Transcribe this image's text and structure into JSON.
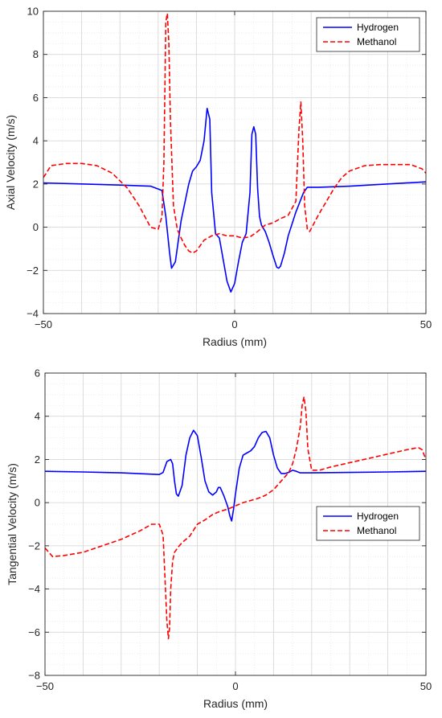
{
  "chart_data": [
    {
      "type": "line",
      "xlabel": "Radius (mm)",
      "ylabel": "Axial Velocity (m/s)",
      "xlim": [
        -50,
        50
      ],
      "ylim": [
        -4,
        10
      ],
      "xticks": [
        -50,
        0,
        50
      ],
      "yticks": [
        -4,
        -2,
        0,
        2,
        4,
        6,
        8,
        10
      ],
      "xtick_labels": [
        "−50",
        "0",
        "50"
      ],
      "ytick_labels": [
        "−4",
        "−2",
        "0",
        "2",
        "4",
        "6",
        "8",
        "10"
      ],
      "grid": true,
      "minor_grid": true,
      "legend": "top-right",
      "series": [
        {
          "name": "Hydrogen",
          "color": "#0000ff",
          "style": "solid",
          "x": [
            -50,
            -40,
            -30,
            -22,
            -19,
            -18,
            -17,
            -16.5,
            -15.5,
            -14,
            -12,
            -11,
            -10,
            -9,
            -8,
            -7.2,
            -6.5,
            -6,
            -5,
            -4,
            -3,
            -2,
            -1,
            0,
            1,
            2,
            3,
            4,
            4.5,
            5,
            5.5,
            6,
            6.5,
            7,
            8,
            9,
            10,
            11,
            11.5,
            12,
            13,
            14,
            16,
            18,
            19,
            20,
            22,
            30,
            40,
            50
          ],
          "y": [
            2.05,
            2.0,
            1.95,
            1.9,
            1.7,
            0.5,
            -1.2,
            -1.9,
            -1.6,
            0.3,
            2.0,
            2.6,
            2.8,
            3.1,
            4.0,
            5.5,
            5.0,
            1.6,
            -0.3,
            -0.5,
            -1.5,
            -2.5,
            -3.0,
            -2.6,
            -1.6,
            -0.7,
            -0.3,
            1.6,
            4.3,
            4.65,
            4.3,
            1.8,
            0.5,
            0.1,
            -0.2,
            -0.7,
            -1.3,
            -1.85,
            -1.9,
            -1.8,
            -1.2,
            -0.4,
            0.7,
            1.6,
            1.85,
            1.85,
            1.85,
            1.9,
            2.0,
            2.1
          ]
        },
        {
          "name": "Methanol",
          "color": "#ff0000",
          "style": "dashed",
          "x": [
            -50,
            -48,
            -44,
            -40,
            -36,
            -32,
            -28,
            -25,
            -22,
            -20,
            -19,
            -18.5,
            -18,
            -17.6,
            -17.2,
            -16.8,
            -16,
            -15,
            -14,
            -13,
            -12,
            -11,
            -10,
            -9,
            -8,
            -6,
            -4,
            -2,
            0,
            2,
            4,
            6,
            8,
            10,
            12,
            14,
            16,
            16.8,
            17.3,
            17.8,
            18.3,
            19,
            19.6,
            20.5,
            22,
            24,
            26,
            28,
            30,
            34,
            38,
            42,
            46,
            49,
            50
          ],
          "y": [
            2.3,
            2.85,
            2.95,
            2.95,
            2.85,
            2.5,
            1.8,
            1.0,
            0.0,
            -0.1,
            0.5,
            3.0,
            9.5,
            9.9,
            8.5,
            5.0,
            1.0,
            -0.1,
            -0.5,
            -0.85,
            -1.1,
            -1.2,
            -1.1,
            -0.85,
            -0.6,
            -0.4,
            -0.3,
            -0.4,
            -0.4,
            -0.5,
            -0.45,
            -0.2,
            0.1,
            0.2,
            0.4,
            0.55,
            1.2,
            4.5,
            5.8,
            4.0,
            1.0,
            -0.1,
            -0.2,
            0.1,
            0.6,
            1.2,
            1.8,
            2.3,
            2.6,
            2.85,
            2.9,
            2.9,
            2.9,
            2.7,
            2.5
          ]
        }
      ]
    },
    {
      "type": "line",
      "xlabel": "Radius (mm)",
      "ylabel": "Tangential Velocity (m/s)",
      "xlim": [
        -50,
        50
      ],
      "ylim": [
        -8,
        6
      ],
      "xticks": [
        -50,
        0,
        50
      ],
      "yticks": [
        -8,
        -6,
        -4,
        -2,
        0,
        2,
        4,
        6
      ],
      "xtick_labels": [
        "−50",
        "0",
        "50"
      ],
      "ytick_labels": [
        "−8",
        "−6",
        "−4",
        "−2",
        "0",
        "2",
        "4",
        "6"
      ],
      "grid": true,
      "minor_grid": true,
      "legend": "center-right",
      "series": [
        {
          "name": "Hydrogen",
          "color": "#0000ff",
          "style": "solid",
          "x": [
            -50,
            -40,
            -30,
            -20,
            -19,
            -18,
            -17,
            -16.5,
            -16,
            -15.5,
            -15,
            -14,
            -13,
            -12,
            -11,
            -10,
            -9,
            -8,
            -7,
            -6,
            -5,
            -4.5,
            -4,
            -3,
            -2,
            -1.5,
            -1,
            -0.5,
            0,
            1,
            2,
            3,
            4,
            5,
            6,
            7,
            8,
            9,
            10,
            11,
            12,
            13,
            14,
            15,
            16,
            17,
            20,
            30,
            40,
            50
          ],
          "y": [
            1.45,
            1.42,
            1.38,
            1.3,
            1.4,
            1.9,
            2.0,
            1.8,
            1.0,
            0.4,
            0.3,
            0.8,
            2.2,
            3.0,
            3.35,
            3.1,
            2.1,
            1.0,
            0.5,
            0.35,
            0.5,
            0.7,
            0.7,
            0.3,
            -0.2,
            -0.6,
            -0.85,
            -0.3,
            0.4,
            1.6,
            2.2,
            2.3,
            2.4,
            2.6,
            3.0,
            3.25,
            3.3,
            3.0,
            2.2,
            1.6,
            1.35,
            1.35,
            1.4,
            1.5,
            1.45,
            1.38,
            1.38,
            1.4,
            1.42,
            1.45
          ]
        },
        {
          "name": "Methanol",
          "color": "#ff0000",
          "style": "dashed",
          "x": [
            -50,
            -48,
            -45,
            -40,
            -35,
            -30,
            -25,
            -22,
            -20,
            -19,
            -18.5,
            -18,
            -17.6,
            -17.3,
            -17,
            -16.5,
            -16,
            -15,
            -14,
            -12,
            -10,
            -8,
            -6,
            -4,
            -2,
            0,
            2,
            4,
            6,
            8,
            10,
            12,
            14,
            15,
            16,
            17,
            17.5,
            18,
            18.5,
            19,
            20,
            22,
            25,
            30,
            35,
            40,
            45,
            48,
            49,
            50
          ],
          "y": [
            -2.1,
            -2.5,
            -2.45,
            -2.3,
            -2.0,
            -1.7,
            -1.3,
            -1.0,
            -1.0,
            -1.5,
            -3.5,
            -5.5,
            -6.3,
            -5.8,
            -4.0,
            -2.7,
            -2.3,
            -2.05,
            -1.85,
            -1.55,
            -1.0,
            -0.8,
            -0.55,
            -0.4,
            -0.3,
            -0.15,
            0.0,
            0.1,
            0.2,
            0.35,
            0.6,
            1.0,
            1.4,
            1.8,
            2.5,
            3.5,
            4.5,
            4.9,
            4.2,
            2.5,
            1.5,
            1.5,
            1.65,
            1.85,
            2.05,
            2.25,
            2.45,
            2.55,
            2.45,
            2.0
          ]
        }
      ]
    }
  ]
}
